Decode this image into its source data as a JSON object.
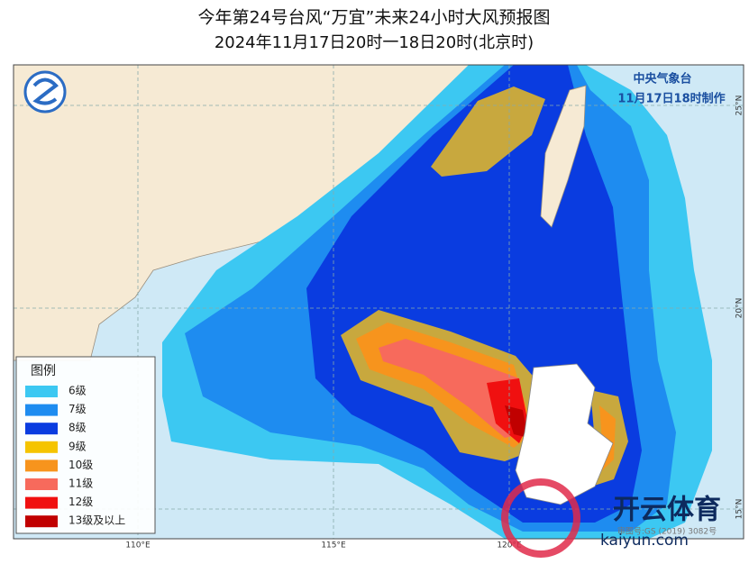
{
  "header": {
    "title": "今年第24号台风“万宜”未来24小时大风预报图",
    "subtitle": "2024年11月17日20时一18日20时(北京时)"
  },
  "agency": {
    "name": "中央气象台",
    "issued": "11月17日18时制作"
  },
  "legend": {
    "title": "图例",
    "items": [
      {
        "label": "6级",
        "color": "#3cc8f2"
      },
      {
        "label": "7级",
        "color": "#1e8cf0"
      },
      {
        "label": "8级",
        "color": "#0a3ce0"
      },
      {
        "label": "9级",
        "color": "#f5c400"
      },
      {
        "label": "10级",
        "color": "#f7941d"
      },
      {
        "label": "11级",
        "color": "#f76a5c"
      },
      {
        "label": "12级",
        "color": "#f01010"
      },
      {
        "label": "13级及以上",
        "color": "#c00000"
      }
    ]
  },
  "lon_labels": [
    "110°E",
    "115°E",
    "120°E"
  ],
  "lat_labels": [
    "25°N",
    "20°N",
    "15°N"
  ],
  "watermark": {
    "brand": "开云体育",
    "site": "kaiyun.com",
    "approval": "审图号:GS (2019) 3082号"
  }
}
